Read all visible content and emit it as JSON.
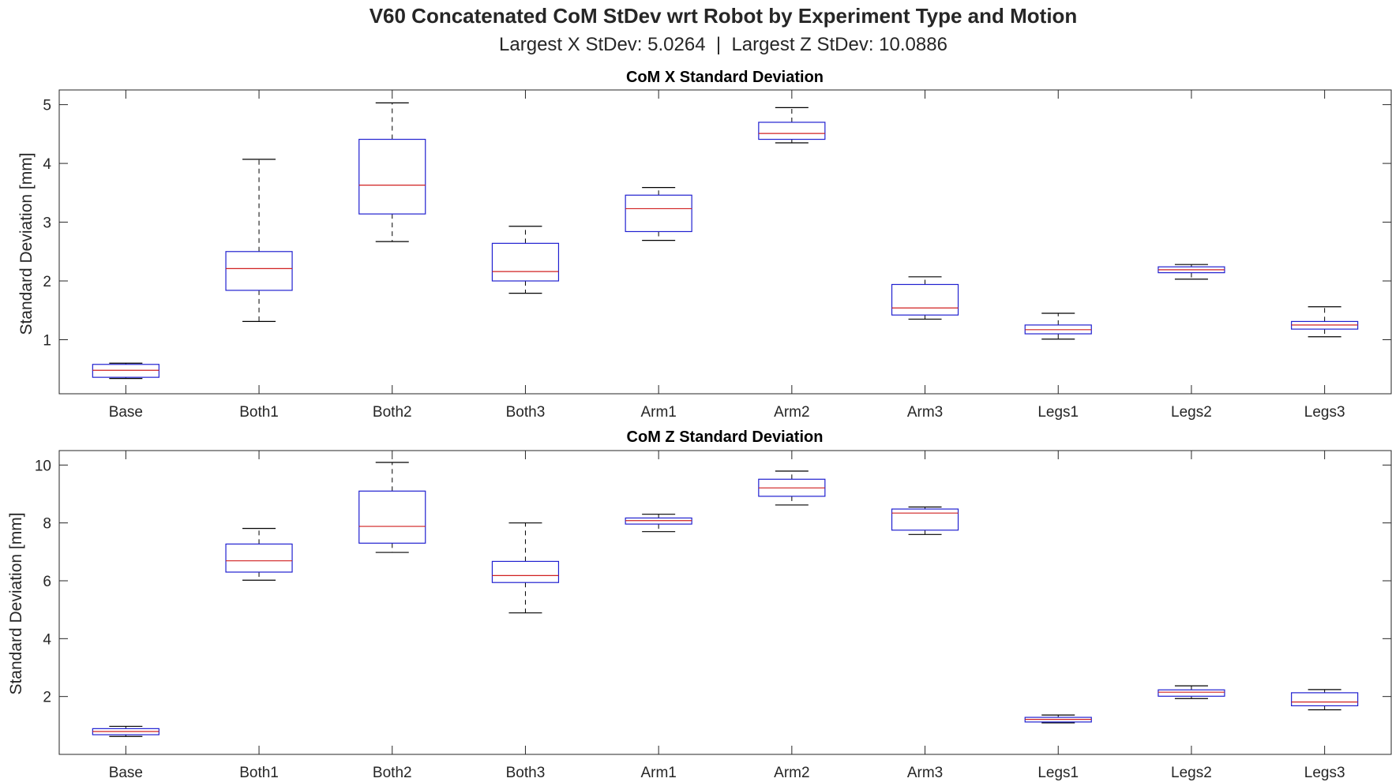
{
  "figure": {
    "title": "V60 Concatenated CoM StDev wrt Robot by Experiment Type and Motion",
    "subtitle": "Largest X StDev: 5.0264  |  Largest Z StDev: 10.0886"
  },
  "colors": {
    "box": "#2020d0",
    "median": "#d02020",
    "whisker": "#000000",
    "axis": "#262626"
  },
  "chart_data": [
    {
      "type": "boxplot",
      "title": "CoM X Standard Deviation",
      "ylabel": "Standard Deviation [mm]",
      "xlabel": "",
      "ylim": [
        0.08,
        5.25
      ],
      "yticks": [
        1,
        2,
        3,
        4,
        5
      ],
      "grid": false,
      "categories": [
        "Base",
        "Both1",
        "Both2",
        "Both3",
        "Arm1",
        "Arm2",
        "Arm3",
        "Legs1",
        "Legs2",
        "Legs3"
      ],
      "boxes": [
        {
          "min": 0.34,
          "q1": 0.36,
          "median": 0.48,
          "q3": 0.58,
          "max": 0.6
        },
        {
          "min": 1.31,
          "q1": 1.84,
          "median": 2.21,
          "q3": 2.5,
          "max": 4.07
        },
        {
          "min": 2.67,
          "q1": 3.14,
          "median": 3.63,
          "q3": 4.41,
          "max": 5.03
        },
        {
          "min": 1.79,
          "q1": 2.0,
          "median": 2.16,
          "q3": 2.64,
          "max": 2.93
        },
        {
          "min": 2.69,
          "q1": 2.84,
          "median": 3.23,
          "q3": 3.46,
          "max": 3.59
        },
        {
          "min": 4.35,
          "q1": 4.41,
          "median": 4.51,
          "q3": 4.7,
          "max": 4.95
        },
        {
          "min": 1.35,
          "q1": 1.42,
          "median": 1.54,
          "q3": 1.94,
          "max": 2.07
        },
        {
          "min": 1.01,
          "q1": 1.1,
          "median": 1.17,
          "q3": 1.25,
          "max": 1.45
        },
        {
          "min": 2.03,
          "q1": 2.14,
          "median": 2.19,
          "q3": 2.24,
          "max": 2.28
        },
        {
          "min": 1.05,
          "q1": 1.18,
          "median": 1.25,
          "q3": 1.31,
          "max": 1.56
        }
      ]
    },
    {
      "type": "boxplot",
      "title": "CoM Z Standard Deviation",
      "ylabel": "Standard Deviation [mm]",
      "xlabel": "",
      "ylim": [
        0.0,
        10.5
      ],
      "yticks": [
        2,
        4,
        6,
        8,
        10
      ],
      "grid": false,
      "categories": [
        "Base",
        "Both1",
        "Both2",
        "Both3",
        "Arm1",
        "Arm2",
        "Arm3",
        "Legs1",
        "Legs2",
        "Legs3"
      ],
      "boxes": [
        {
          "min": 0.62,
          "q1": 0.68,
          "median": 0.79,
          "q3": 0.89,
          "max": 0.97
        },
        {
          "min": 6.02,
          "q1": 6.3,
          "median": 6.69,
          "q3": 7.27,
          "max": 7.81
        },
        {
          "min": 6.98,
          "q1": 7.3,
          "median": 7.88,
          "q3": 9.1,
          "max": 10.09
        },
        {
          "min": 4.89,
          "q1": 5.94,
          "median": 6.18,
          "q3": 6.67,
          "max": 8.0
        },
        {
          "min": 7.7,
          "q1": 7.96,
          "median": 8.08,
          "q3": 8.17,
          "max": 8.3
        },
        {
          "min": 8.62,
          "q1": 8.92,
          "median": 9.21,
          "q3": 9.51,
          "max": 9.79
        },
        {
          "min": 7.6,
          "q1": 7.75,
          "median": 8.34,
          "q3": 8.48,
          "max": 8.55
        },
        {
          "min": 1.09,
          "q1": 1.12,
          "median": 1.21,
          "q3": 1.28,
          "max": 1.36
        },
        {
          "min": 1.93,
          "q1": 2.01,
          "median": 2.15,
          "q3": 2.23,
          "max": 2.37
        },
        {
          "min": 1.54,
          "q1": 1.68,
          "median": 1.81,
          "q3": 2.13,
          "max": 2.24
        }
      ]
    }
  ]
}
